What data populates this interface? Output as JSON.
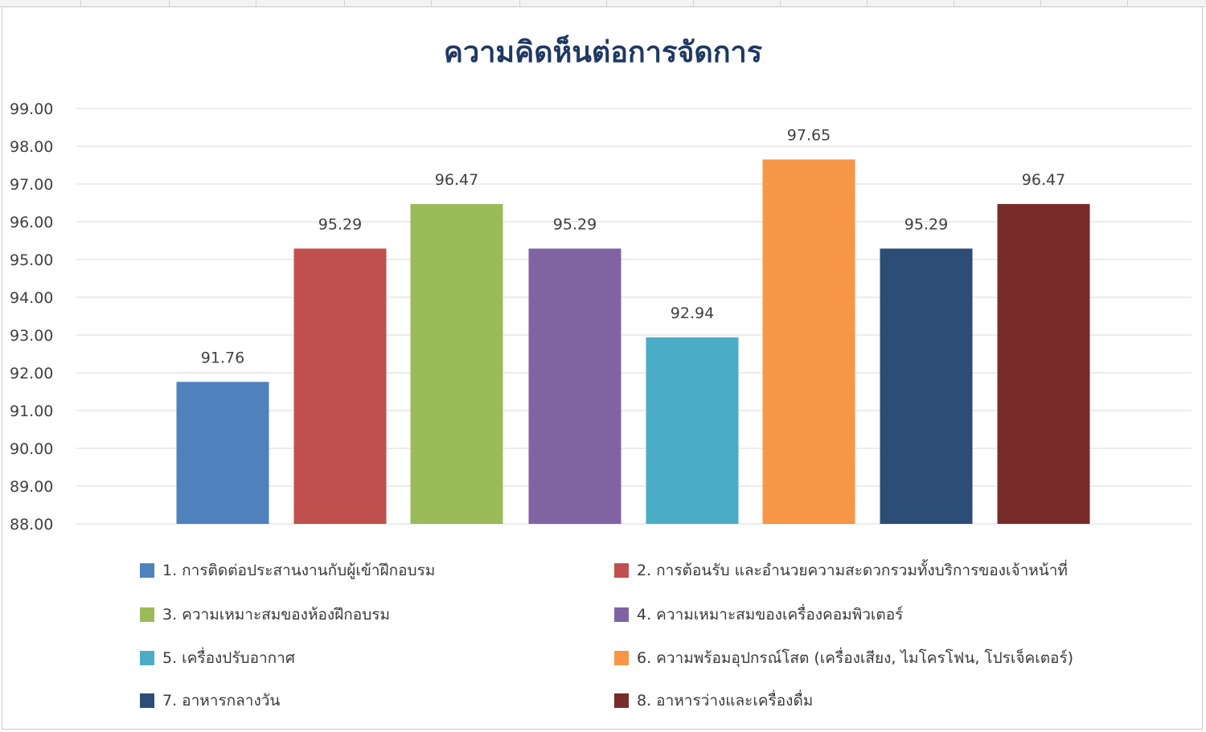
{
  "chart_data": {
    "type": "bar",
    "title": "ความคิดห็นต่อการจัดการ",
    "xlabel": "",
    "ylabel": "",
    "ylim": [
      88,
      99
    ],
    "yticks": [
      "99.00",
      "98.00",
      "97.00",
      "96.00",
      "95.00",
      "94.00",
      "93.00",
      "92.00",
      "91.00",
      "90.00",
      "89.00",
      "88.00"
    ],
    "grid": true,
    "legend_position": "bottom",
    "categories": [
      "1. การติดต่อประสานงานกับผู้เข้าฝึกอบรม",
      "2. การต้อนรับ และอำนวยความสะดวกรวมทั้งบริการของเจ้าหน้าที่",
      "3. ความเหมาะสมของห้องฝึกอบรม",
      "4. ความเหมาะสมของเครื่องคอมพิวเตอร์",
      "5. เครื่องปรับอากาศ",
      "6. ความพร้อมอุปกรณ์โสต (เครื่องเสียง, ไมโครโฟน, โปรเจ็คเตอร์)",
      "7. อาหารกลางวัน",
      "8. อาหารว่างและเครื่องดื่ม"
    ],
    "values": [
      91.76,
      95.29,
      96.47,
      95.29,
      92.94,
      97.65,
      95.29,
      96.47
    ],
    "value_labels": [
      "91.76",
      "95.29",
      "96.47",
      "95.29",
      "92.94",
      "97.65",
      "95.29",
      "96.47"
    ],
    "colors": [
      "#4f81bd",
      "#c0504d",
      "#9bbb59",
      "#8064a2",
      "#4bacc6",
      "#f79646",
      "#2c4d75",
      "#772c2a"
    ]
  },
  "colors": {
    "title": "#1f3864",
    "grid": "#d9d9d9",
    "tick_text": "#404040"
  }
}
